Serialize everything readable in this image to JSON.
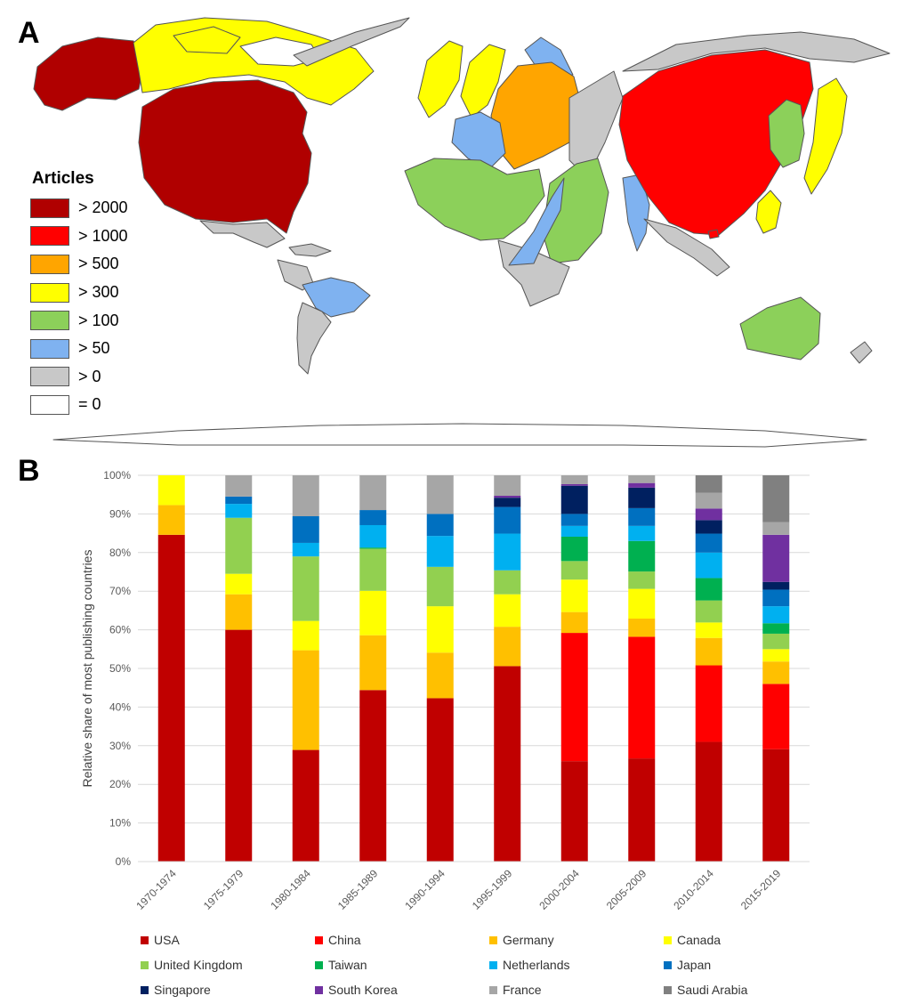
{
  "panel_a": {
    "label": "A",
    "legend": {
      "title": "Articles",
      "items": [
        {
          "label": "> 2000",
          "color": "#B00000"
        },
        {
          "label": "> 1000",
          "color": "#FF0000"
        },
        {
          "label": "> 500",
          "color": "#FFA500"
        },
        {
          "label": "> 300",
          "color": "#FFFF00"
        },
        {
          "label": "> 100",
          "color": "#8CD05A"
        },
        {
          "label": "> 50",
          "color": "#7FB2F0"
        },
        {
          "label": "> 0",
          "color": "#C8C8C8"
        },
        {
          "label": "= 0",
          "color": "#FFFFFF"
        }
      ]
    }
  },
  "panel_b": {
    "label": "B"
  },
  "chart_data": {
    "type": "bar",
    "stacked": true,
    "ylabel": "Relative share of most publishing countries",
    "ylim": [
      0,
      100
    ],
    "y_ticks": [
      "0%",
      "10%",
      "20%",
      "30%",
      "40%",
      "50%",
      "60%",
      "70%",
      "80%",
      "90%",
      "100%"
    ],
    "categories": [
      "1970-1974",
      "1975-1979",
      "1980-1984",
      "1985-1989",
      "1990-1994",
      "1995-1999",
      "2000-2004",
      "2005-2009",
      "2010-2014",
      "2015-2019"
    ],
    "legend_position": "bottom",
    "series": [
      {
        "name": "USA",
        "color": "#C00000",
        "values": [
          84.6,
          60.0,
          28.9,
          44.4,
          42.3,
          50.6,
          26.0,
          26.7,
          31.0,
          29.1
        ]
      },
      {
        "name": "China",
        "color": "#FF0000",
        "values": [
          0,
          0,
          0,
          0,
          0,
          0,
          33.2,
          31.5,
          19.8,
          16.9
        ]
      },
      {
        "name": "Germany",
        "color": "#FFC000",
        "values": [
          7.7,
          9.2,
          25.8,
          14.2,
          11.8,
          10.2,
          5.4,
          4.7,
          7.1,
          5.8
        ]
      },
      {
        "name": "Canada",
        "color": "#FFFF00",
        "values": [
          7.7,
          5.3,
          7.6,
          11.5,
          12.0,
          8.4,
          8.4,
          7.7,
          4.0,
          3.2
        ]
      },
      {
        "name": "United Kingdom",
        "color": "#92D050",
        "values": [
          0,
          14.5,
          16.7,
          10.9,
          10.2,
          6.2,
          4.8,
          4.5,
          5.7,
          4.0
        ]
      },
      {
        "name": "Taiwan",
        "color": "#00B050",
        "values": [
          0,
          0,
          0,
          0.3,
          0,
          0,
          6.3,
          7.9,
          5.8,
          2.7
        ]
      },
      {
        "name": "Netherlands",
        "color": "#00B0F0",
        "values": [
          0,
          3.6,
          3.5,
          5.8,
          8.0,
          9.5,
          2.8,
          3.9,
          6.6,
          4.4
        ]
      },
      {
        "name": "Japan",
        "color": "#0070C0",
        "values": [
          0,
          1.9,
          6.9,
          3.9,
          5.7,
          6.9,
          3.1,
          4.6,
          4.9,
          4.3
        ]
      },
      {
        "name": "Singapore",
        "color": "#002060",
        "values": [
          0,
          0,
          0,
          0,
          0,
          2.4,
          7.3,
          5.3,
          3.5,
          2.0
        ]
      },
      {
        "name": "South Korea",
        "color": "#7030A0",
        "values": [
          0,
          0,
          0,
          0,
          0,
          0.5,
          0.4,
          1.2,
          3.0,
          12.2
        ]
      },
      {
        "name": "France",
        "color": "#A6A6A6",
        "values": [
          0,
          5.5,
          10.6,
          9.0,
          10.0,
          5.3,
          2.3,
          2.0,
          4.1,
          3.3
        ]
      },
      {
        "name": "Saudi Arabia",
        "color": "#808080",
        "values": [
          0,
          0,
          0,
          0,
          0,
          0,
          0,
          0,
          4.5,
          12.1
        ]
      }
    ]
  }
}
